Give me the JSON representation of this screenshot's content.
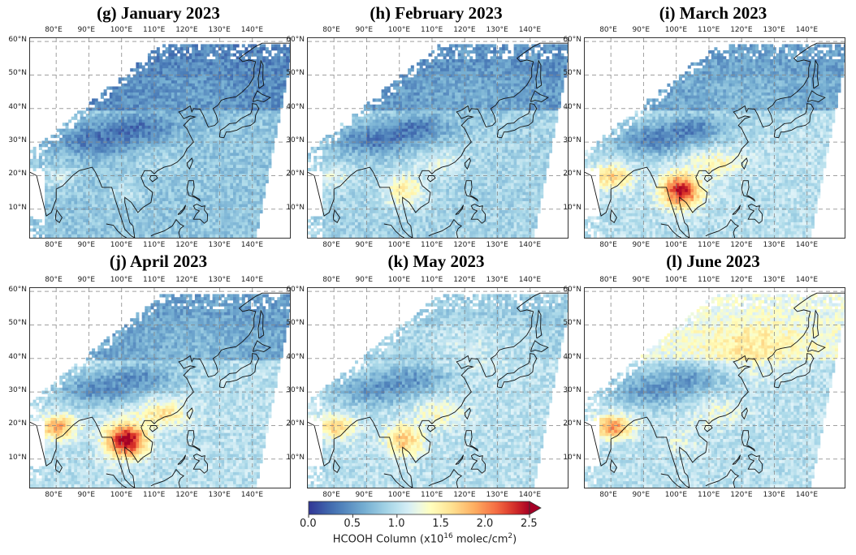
{
  "panels": [
    {
      "id": "g",
      "title": "(g) January 2023",
      "month": "January"
    },
    {
      "id": "h",
      "title": "(h) February 2023",
      "month": "February"
    },
    {
      "id": "i",
      "title": "(i) March 2023",
      "month": "March"
    },
    {
      "id": "j",
      "title": "(j) April 2023",
      "month": "April"
    },
    {
      "id": "k",
      "title": "(k) May 2023",
      "month": "May"
    },
    {
      "id": "l",
      "title": "(l) June 2023",
      "month": "June"
    }
  ],
  "lon_ticks": [
    "80°E",
    "90°E",
    "100°E",
    "110°E",
    "120°E",
    "130°E",
    "140°E"
  ],
  "lat_ticks": [
    "60°N",
    "50°N",
    "40°N",
    "30°N",
    "20°N",
    "10°N"
  ],
  "lon_values": [
    80,
    90,
    100,
    110,
    120,
    130,
    140
  ],
  "lat_values": [
    60,
    50,
    40,
    30,
    20,
    10
  ],
  "extent": {
    "lon_min": 72,
    "lon_max": 152,
    "lat_min": 1,
    "lat_max": 61
  },
  "colorbar": {
    "label_prefix": "HCOOH Column (x10",
    "label_exp": "16",
    "label_mid": " molec/cm",
    "label_exp2": "2",
    "label_suffix": ")",
    "ticks": [
      "0.0",
      "0.5",
      "1.0",
      "1.5",
      "2.0",
      "2.5"
    ],
    "min": 0.0,
    "max": 2.5,
    "extend": "max",
    "colormap": "RdYlBu_r"
  },
  "chart_data": {
    "type": "heatmap",
    "variable": "HCOOH Column",
    "units": "x10^16 molec/cm^2",
    "grid_lines": true,
    "regions_by_month": {
      "January": {
        "mongolia_tibet": 0.3,
        "north_east": 0.6,
        "south_china": 1.0,
        "indochina": 1.0,
        "ocean": 0.8,
        "india": 1.1
      },
      "February": {
        "mongolia_tibet": 0.35,
        "north_east": 0.7,
        "south_china": 1.3,
        "indochina": 1.5,
        "ocean": 0.9,
        "india": 1.2
      },
      "March": {
        "mongolia_tibet": 0.4,
        "north_east": 0.8,
        "south_china": 1.6,
        "indochina": 2.4,
        "ocean": 1.0,
        "india": 1.7
      },
      "April": {
        "mongolia_tibet": 0.45,
        "north_east": 0.8,
        "south_china": 1.8,
        "indochina": 2.6,
        "ocean": 1.0,
        "india": 1.9
      },
      "May": {
        "mongolia_tibet": 0.5,
        "north_east": 1.2,
        "south_china": 1.5,
        "indochina": 1.7,
        "ocean": 1.0,
        "india": 1.7
      },
      "June": {
        "mongolia_tibet": 0.5,
        "north_east": 1.7,
        "south_china": 1.4,
        "indochina": 1.2,
        "ocean": 1.0,
        "india": 2.0
      }
    }
  }
}
